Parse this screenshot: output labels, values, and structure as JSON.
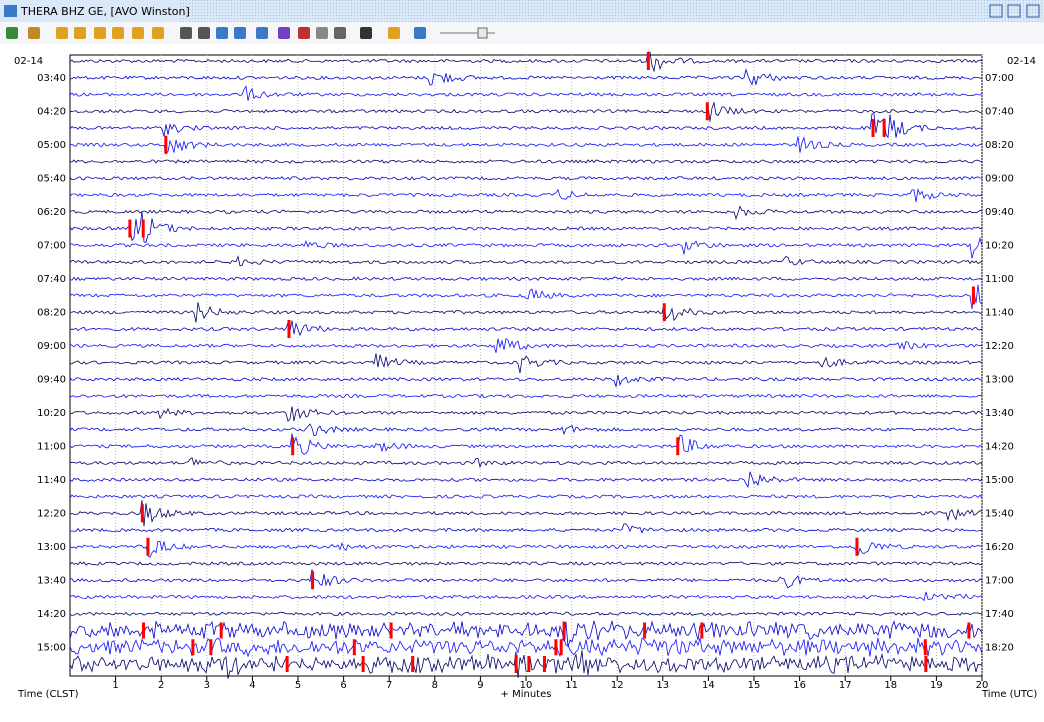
{
  "window": {
    "title": "THERA BHZ GE, [AVO Winston]"
  },
  "helicorder": {
    "date_left": "02-14",
    "date_right": "02-14",
    "left_times": [
      "03:40",
      "04:20",
      "05:00",
      "05:40",
      "06:20",
      "07:00",
      "07:40",
      "08:20",
      "09:00",
      "09:40",
      "10:20",
      "11:00",
      "11:40",
      "12:20",
      "13:00",
      "13:40",
      "14:20",
      "15:00"
    ],
    "right_times": [
      "07:00",
      "07:40",
      "08:20",
      "09:00",
      "09:40",
      "10:20",
      "11:00",
      "11:40",
      "12:20",
      "13:00",
      "13:40",
      "14:20",
      "15:00",
      "15:40",
      "16:20",
      "17:00",
      "17:40",
      "18:20"
    ],
    "x_ticks": [
      1,
      2,
      3,
      4,
      5,
      6,
      7,
      8,
      9,
      10,
      11,
      12,
      13,
      14,
      15,
      16,
      17,
      18,
      19,
      20
    ],
    "left_axis_label": "Time (CLST)",
    "x_label": "+ Minutes",
    "right_axis_label": "Time (UTC)"
  }
}
